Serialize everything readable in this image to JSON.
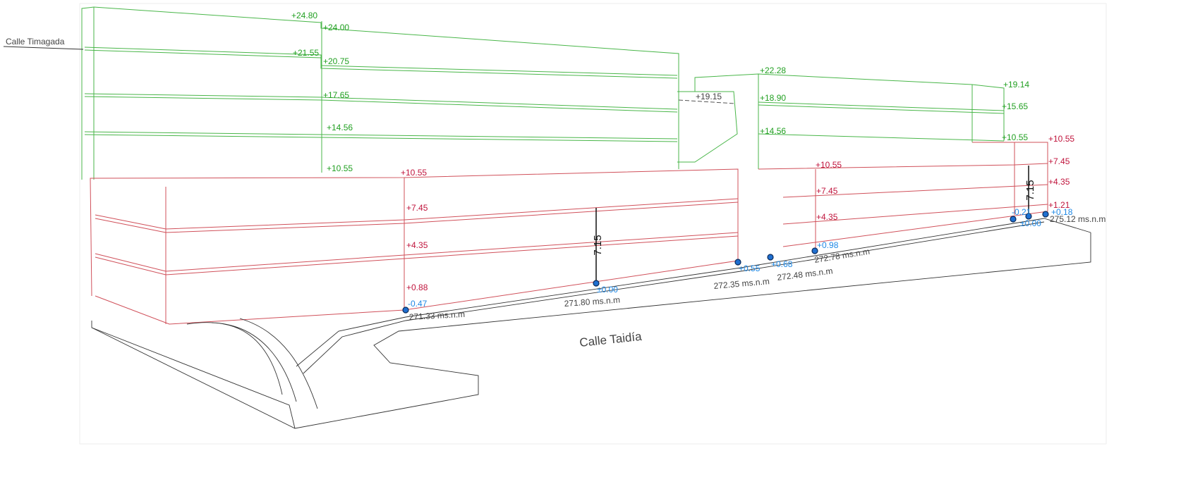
{
  "streets": {
    "top_left": "Calle Timagada",
    "bottom": "Calle Taidía"
  },
  "levels": {
    "green": [
      "+24.80",
      "+24.00",
      "+21.55",
      "+20.75",
      "+17.65",
      "+14.56",
      "+10.55",
      "+22.28",
      "+19.14",
      "+18.90",
      "+15.65",
      "+14.56",
      "+10.55"
    ],
    "gray": [
      "+19.15"
    ],
    "red": [
      "+10.55",
      "+7.45",
      "+4.35",
      "+0.88",
      "+10.55",
      "+7.45",
      "+4.35",
      "+10.55",
      "+7.45",
      "+4.35",
      "+1.21"
    ],
    "blue": [
      "-0.47",
      "±0.00",
      "+0.55",
      "+0.68",
      "+0.98",
      "-0.21",
      "±0.00",
      "+0.18"
    ]
  },
  "altitudes": [
    "271.33 ms.n.m",
    "271.80 ms.n.m",
    "272.35 ms.n.m",
    "272.48 ms.n.m",
    "272.78 ms.n.m",
    "275.12 ms.n.m"
  ],
  "dimensions": [
    "7.15",
    "7.15"
  ]
}
